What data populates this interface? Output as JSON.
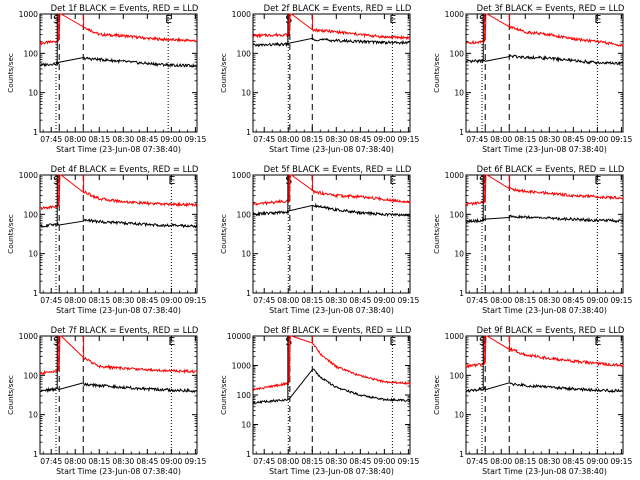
{
  "chart_data": [
    {
      "type": "line",
      "title": "Det 1f BLACK = Events, RED = LLD",
      "xlabel": "Start Time (23-Jun-08 07:38:40)",
      "ylabel": "Counts/sec",
      "yscale": "log",
      "ylim": [
        1,
        1000
      ],
      "x_ticks": [
        "07:45",
        "08:00",
        "08:15",
        "08:30",
        "08:45",
        "09:00",
        "09:15"
      ],
      "y_ticks": [
        "1",
        "10",
        "100",
        "1000"
      ],
      "markers": {
        "S": "07:48",
        "E": "08:58",
        "gap_start": "07:50",
        "gap_end": "08:05"
      },
      "series": [
        {
          "color": "#ff0000",
          "points": [
            [
              "07:38",
              180
            ],
            [
              "07:48",
              200
            ],
            [
              "08:05",
              480
            ],
            [
              "08:15",
              300
            ],
            [
              "08:30",
              280
            ],
            [
              "08:45",
              240
            ],
            [
              "09:00",
              220
            ],
            [
              "09:15",
              210
            ]
          ]
        },
        {
          "color": "#000000",
          "points": [
            [
              "07:38",
              50
            ],
            [
              "07:48",
              55
            ],
            [
              "08:05",
              75
            ],
            [
              "08:15",
              70
            ],
            [
              "08:30",
              62
            ],
            [
              "08:45",
              55
            ],
            [
              "09:00",
              50
            ],
            [
              "09:15",
              48
            ]
          ]
        }
      ]
    },
    {
      "type": "line",
      "title": "Det 2f BLACK = Events, RED = LLD",
      "xlabel": "Start Time (23-Jun-08 07:38:40)",
      "ylabel": "Counts/sec",
      "yscale": "log",
      "ylim": [
        1,
        1000
      ],
      "x_ticks": [
        "07:45",
        "08:00",
        "08:15",
        "08:30",
        "08:45",
        "09:00",
        "09:15"
      ],
      "y_ticks": [
        "1",
        "10",
        "100",
        "1000"
      ],
      "markers": {
        "S": "08:00",
        "E": "09:05",
        "gap_start": "08:01",
        "gap_end": "08:15"
      },
      "series": [
        {
          "color": "#ff0000",
          "points": [
            [
              "07:38",
              280
            ],
            [
              "08:00",
              300
            ],
            [
              "08:15",
              400
            ],
            [
              "08:30",
              350
            ],
            [
              "08:45",
              300
            ],
            [
              "09:00",
              260
            ],
            [
              "09:15",
              250
            ]
          ]
        },
        {
          "color": "#000000",
          "points": [
            [
              "07:38",
              160
            ],
            [
              "08:00",
              170
            ],
            [
              "08:15",
              230
            ],
            [
              "08:30",
              210
            ],
            [
              "08:45",
              200
            ],
            [
              "09:00",
              190
            ],
            [
              "09:15",
              185
            ]
          ]
        }
      ]
    },
    {
      "type": "line",
      "title": "Det 3f BLACK = Events, RED = LLD",
      "xlabel": "Start Time (23-Jun-08 07:38:40)",
      "ylabel": "Counts/sec",
      "yscale": "log",
      "ylim": [
        1,
        1000
      ],
      "x_ticks": [
        "07:45",
        "08:00",
        "08:15",
        "08:30",
        "08:45",
        "09:00",
        "09:15"
      ],
      "y_ticks": [
        "1",
        "10",
        "100",
        "1000"
      ],
      "markers": {
        "S": "07:48",
        "E": "09:00",
        "gap_start": "07:50",
        "gap_end": "08:05"
      },
      "series": [
        {
          "color": "#ff0000",
          "points": [
            [
              "07:38",
              180
            ],
            [
              "07:48",
              200
            ],
            [
              "08:05",
              480
            ],
            [
              "08:15",
              350
            ],
            [
              "08:30",
              300
            ],
            [
              "08:45",
              230
            ],
            [
              "09:00",
              200
            ],
            [
              "09:15",
              160
            ]
          ]
        },
        {
          "color": "#000000",
          "points": [
            [
              "07:38",
              60
            ],
            [
              "07:48",
              65
            ],
            [
              "08:05",
              85
            ],
            [
              "08:15",
              80
            ],
            [
              "08:30",
              75
            ],
            [
              "08:45",
              65
            ],
            [
              "09:00",
              58
            ],
            [
              "09:15",
              55
            ]
          ]
        }
      ]
    },
    {
      "type": "line",
      "title": "Det 4f BLACK = Events, RED = LLD",
      "xlabel": "Start Time (23-Jun-08 07:38:40)",
      "ylabel": "Counts/sec",
      "yscale": "log",
      "ylim": [
        1,
        1000
      ],
      "x_ticks": [
        "07:45",
        "08:00",
        "08:15",
        "08:30",
        "08:45",
        "09:00",
        "09:15"
      ],
      "y_ticks": [
        "1",
        "10",
        "100",
        "1000"
      ],
      "markers": {
        "S": "07:48",
        "E": "09:00",
        "gap_start": "07:50",
        "gap_end": "08:05"
      },
      "series": [
        {
          "color": "#ff0000",
          "points": [
            [
              "07:38",
              140
            ],
            [
              "07:48",
              160
            ],
            [
              "08:05",
              380
            ],
            [
              "08:15",
              250
            ],
            [
              "08:30",
              210
            ],
            [
              "08:45",
              190
            ],
            [
              "09:00",
              180
            ],
            [
              "09:15",
              175
            ]
          ]
        },
        {
          "color": "#000000",
          "points": [
            [
              "07:38",
              50
            ],
            [
              "07:48",
              55
            ],
            [
              "08:05",
              72
            ],
            [
              "08:15",
              65
            ],
            [
              "08:30",
              60
            ],
            [
              "08:45",
              55
            ],
            [
              "09:00",
              52
            ],
            [
              "09:15",
              50
            ]
          ]
        }
      ]
    },
    {
      "type": "line",
      "title": "Det 5f BLACK = Events, RED = LLD",
      "xlabel": "Start Time (23-Jun-08 07:38:40)",
      "ylabel": "Counts/sec",
      "yscale": "log",
      "ylim": [
        1,
        1000
      ],
      "x_ticks": [
        "07:45",
        "08:00",
        "08:15",
        "08:30",
        "08:45",
        "09:00",
        "09:15"
      ],
      "y_ticks": [
        "1",
        "10",
        "100",
        "1000"
      ],
      "markers": {
        "S": "08:00",
        "E": "09:05",
        "gap_start": "08:01",
        "gap_end": "08:15"
      },
      "series": [
        {
          "color": "#ff0000",
          "points": [
            [
              "07:38",
              180
            ],
            [
              "08:00",
              220
            ],
            [
              "08:15",
              380
            ],
            [
              "08:30",
              300
            ],
            [
              "08:45",
              280
            ],
            [
              "09:00",
              240
            ],
            [
              "09:15",
              210
            ]
          ]
        },
        {
          "color": "#000000",
          "points": [
            [
              "07:38",
              100
            ],
            [
              "08:00",
              115
            ],
            [
              "08:15",
              170
            ],
            [
              "08:30",
              130
            ],
            [
              "08:45",
              110
            ],
            [
              "09:00",
              100
            ],
            [
              "09:15",
              95
            ]
          ]
        }
      ]
    },
    {
      "type": "line",
      "title": "Det 6f BLACK = Events, RED = LLD",
      "xlabel": "Start Time (23-Jun-08 07:38:40)",
      "ylabel": "Counts/sec",
      "yscale": "log",
      "ylim": [
        1,
        1000
      ],
      "x_ticks": [
        "07:45",
        "08:00",
        "08:15",
        "08:30",
        "08:45",
        "09:00",
        "09:15"
      ],
      "y_ticks": [
        "1",
        "10",
        "100",
        "1000"
      ],
      "markers": {
        "S": "07:48",
        "E": "09:00",
        "gap_start": "07:50",
        "gap_end": "08:05"
      },
      "series": [
        {
          "color": "#ff0000",
          "points": [
            [
              "07:38",
              180
            ],
            [
              "07:48",
              200
            ],
            [
              "08:05",
              450
            ],
            [
              "08:15",
              380
            ],
            [
              "08:30",
              340
            ],
            [
              "08:45",
              300
            ],
            [
              "09:00",
              280
            ],
            [
              "09:15",
              260
            ]
          ]
        },
        {
          "color": "#000000",
          "points": [
            [
              "07:38",
              65
            ],
            [
              "07:48",
              70
            ],
            [
              "08:05",
              90
            ],
            [
              "08:15",
              85
            ],
            [
              "08:30",
              80
            ],
            [
              "08:45",
              75
            ],
            [
              "09:00",
              70
            ],
            [
              "09:15",
              68
            ]
          ]
        }
      ]
    },
    {
      "type": "line",
      "title": "Det 7f BLACK = Events, RED = LLD",
      "xlabel": "Start Time (23-Jun-08 07:38:40)",
      "ylabel": "Counts/sec",
      "yscale": "log",
      "ylim": [
        1,
        1000
      ],
      "x_ticks": [
        "07:45",
        "08:00",
        "08:15",
        "08:30",
        "08:45",
        "09:00",
        "09:15"
      ],
      "y_ticks": [
        "1",
        "10",
        "100",
        "1000"
      ],
      "markers": {
        "S": "07:48",
        "E": "09:00",
        "gap_start": "07:50",
        "gap_end": "08:05"
      },
      "series": [
        {
          "color": "#ff0000",
          "points": [
            [
              "07:38",
              110
            ],
            [
              "07:48",
              130
            ],
            [
              "08:05",
              280
            ],
            [
              "08:15",
              170
            ],
            [
              "08:30",
              150
            ],
            [
              "08:45",
              140
            ],
            [
              "09:00",
              130
            ],
            [
              "09:15",
              125
            ]
          ]
        },
        {
          "color": "#000000",
          "points": [
            [
              "07:38",
              40
            ],
            [
              "07:48",
              45
            ],
            [
              "08:05",
              60
            ],
            [
              "08:15",
              55
            ],
            [
              "08:30",
              50
            ],
            [
              "08:45",
              45
            ],
            [
              "09:00",
              42
            ],
            [
              "09:15",
              40
            ]
          ]
        }
      ]
    },
    {
      "type": "line",
      "title": "Det 8f BLACK = Events, RED = LLD",
      "xlabel": "Start Time (23-Jun-08 07:38:40)",
      "ylabel": "Counts/sec",
      "yscale": "log",
      "ylim": [
        1,
        10000
      ],
      "x_ticks": [
        "07:45",
        "08:00",
        "08:15",
        "08:30",
        "08:45",
        "09:00",
        "09:15"
      ],
      "y_ticks": [
        "1",
        "10",
        "100",
        "1000",
        "10000"
      ],
      "markers": {
        "S": "08:00",
        "E": "09:05",
        "gap_start": "08:01",
        "gap_end": "08:15"
      },
      "series": [
        {
          "color": "#ff0000",
          "points": [
            [
              "07:38",
              150
            ],
            [
              "08:00",
              250
            ],
            [
              "08:15",
              6000
            ],
            [
              "08:20",
              2500
            ],
            [
              "08:30",
              900
            ],
            [
              "08:45",
              450
            ],
            [
              "09:00",
              280
            ],
            [
              "09:15",
              250
            ]
          ]
        },
        {
          "color": "#000000",
          "points": [
            [
              "07:38",
              55
            ],
            [
              "08:00",
              70
            ],
            [
              "08:15",
              800
            ],
            [
              "08:20",
              400
            ],
            [
              "08:30",
              180
            ],
            [
              "08:45",
              100
            ],
            [
              "09:00",
              70
            ],
            [
              "09:15",
              65
            ]
          ]
        }
      ]
    },
    {
      "type": "line",
      "title": "Det 9f BLACK = Events, RED = LLD",
      "xlabel": "Start Time (23-Jun-08 07:38:40)",
      "ylabel": "Counts/sec",
      "yscale": "log",
      "ylim": [
        1,
        1000
      ],
      "x_ticks": [
        "07:45",
        "08:00",
        "08:15",
        "08:30",
        "08:45",
        "09:00",
        "09:15"
      ],
      "y_ticks": [
        "1",
        "10",
        "100",
        "1000"
      ],
      "markers": {
        "S": "07:48",
        "E": "09:00",
        "gap_start": "07:50",
        "gap_end": "08:05"
      },
      "series": [
        {
          "color": "#ff0000",
          "points": [
            [
              "07:38",
              170
            ],
            [
              "07:48",
              190
            ],
            [
              "08:05",
              480
            ],
            [
              "08:15",
              330
            ],
            [
              "08:30",
              270
            ],
            [
              "08:45",
              230
            ],
            [
              "09:00",
              200
            ],
            [
              "09:15",
              180
            ]
          ]
        },
        {
          "color": "#000000",
          "points": [
            [
              "07:38",
              40
            ],
            [
              "07:48",
              45
            ],
            [
              "08:05",
              60
            ],
            [
              "08:15",
              55
            ],
            [
              "08:30",
              50
            ],
            [
              "08:45",
              45
            ],
            [
              "09:00",
              42
            ],
            [
              "09:15",
              40
            ]
          ]
        }
      ]
    }
  ]
}
